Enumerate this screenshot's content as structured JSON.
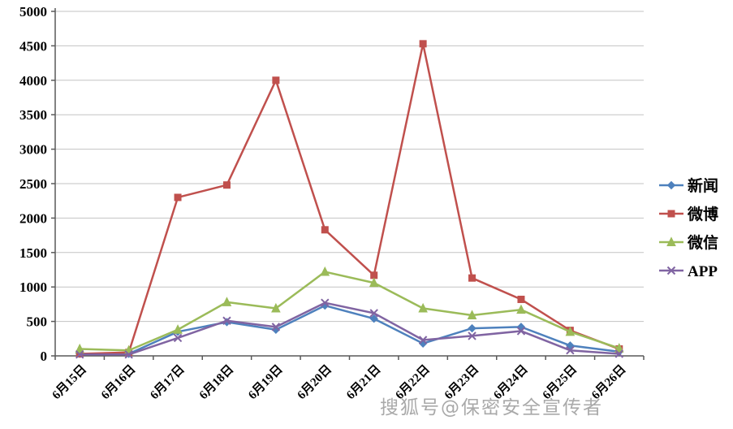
{
  "watermark": "搜狐号@保密安全宣传者",
  "colors": {
    "grid": "#c3c3c3",
    "axis": "#595959",
    "tick_text": "#000000",
    "watermark": "#a9a9a9",
    "background": "#ffffff"
  },
  "chart_data": {
    "type": "line",
    "title": "",
    "xlabel": "",
    "ylabel": "",
    "ylim": [
      0,
      5000
    ],
    "ystep": 500,
    "grid": true,
    "legend_position": "right",
    "categories": [
      "6月15日",
      "6月16日",
      "6月17日",
      "6月18日",
      "6月19日",
      "6月20日",
      "6月21日",
      "6月22日",
      "6月23日",
      "6月24日",
      "6月25日",
      "6月26日"
    ],
    "series": [
      {
        "name": "新闻",
        "color": "#4E81BD",
        "marker": "diamond",
        "values": [
          30,
          30,
          350,
          490,
          380,
          730,
          540,
          180,
          400,
          420,
          150,
          60
        ]
      },
      {
        "name": "微博",
        "color": "#C0504D",
        "marker": "square",
        "values": [
          30,
          50,
          2300,
          2480,
          4000,
          1830,
          1170,
          4530,
          1130,
          820,
          370,
          100
        ]
      },
      {
        "name": "微信",
        "color": "#9BBB59",
        "marker": "triangle",
        "values": [
          100,
          80,
          380,
          780,
          690,
          1220,
          1060,
          690,
          590,
          670,
          350,
          110
        ]
      },
      {
        "name": "APP",
        "color": "#8064A2",
        "marker": "x",
        "values": [
          20,
          20,
          260,
          510,
          420,
          770,
          620,
          230,
          290,
          360,
          80,
          30
        ]
      }
    ],
    "y_tick_labels": [
      "0",
      "500",
      "1000",
      "1500",
      "2000",
      "2500",
      "3000",
      "3500",
      "4000",
      "4500",
      "5000"
    ]
  }
}
